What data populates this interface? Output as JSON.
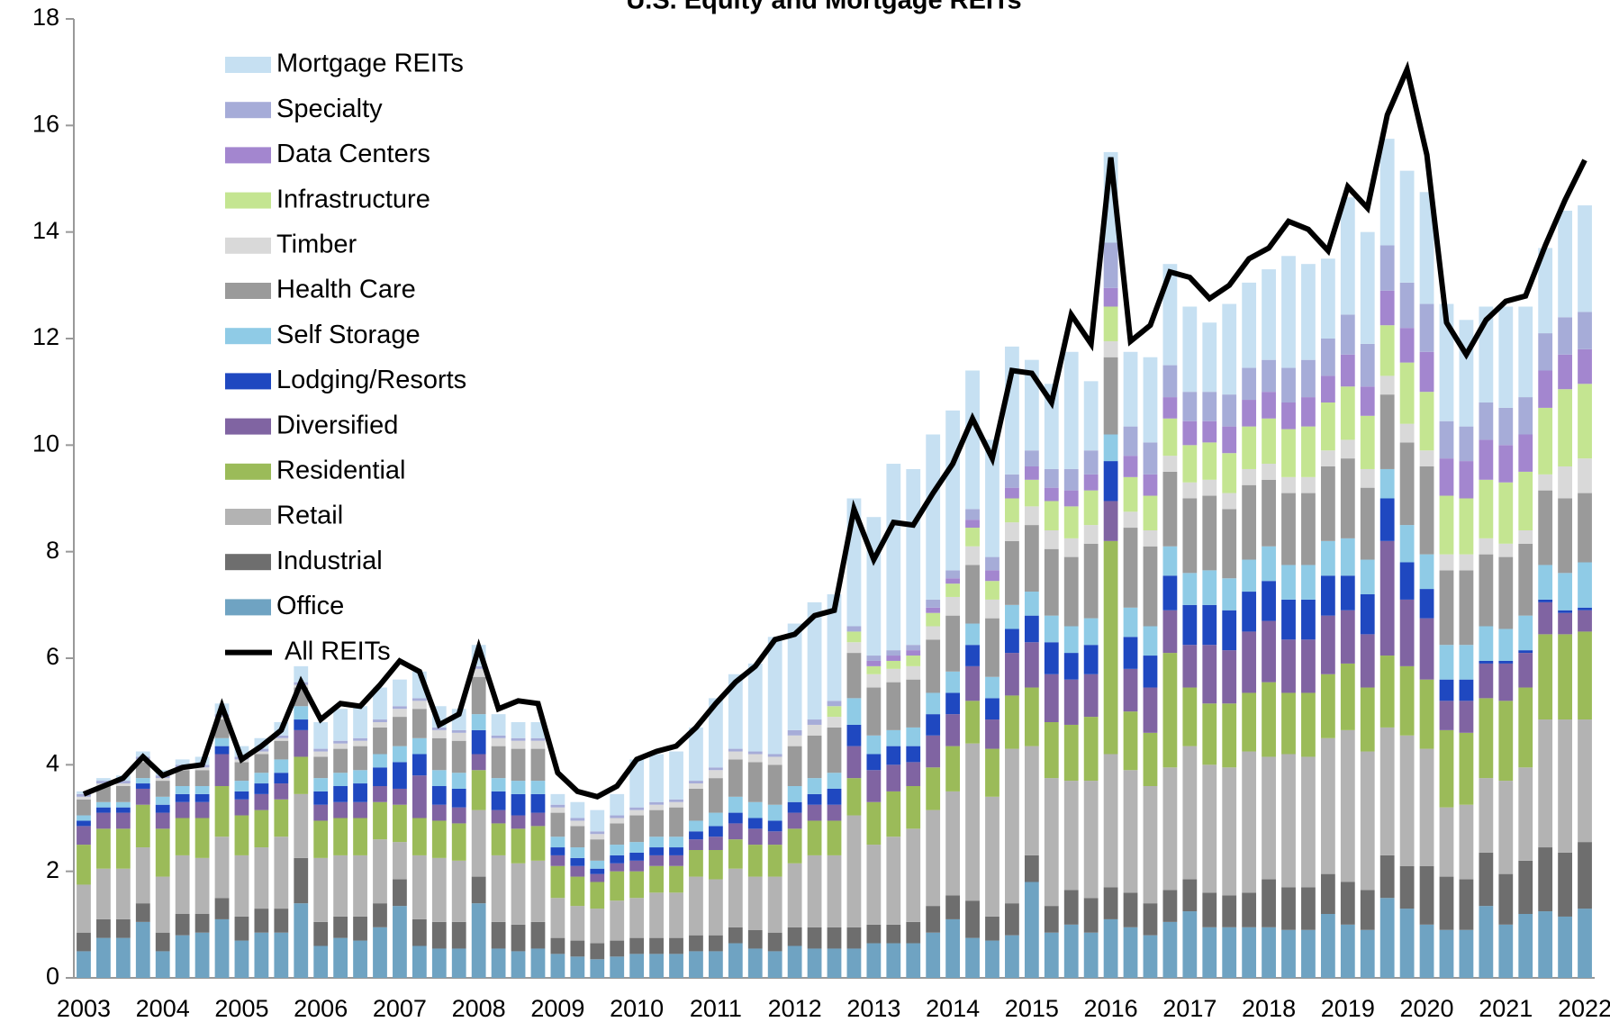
{
  "chart_data": {
    "type": "bar",
    "stacked": true,
    "title": "U.S. Equity and Mortgage REITs",
    "categories": [
      "2003",
      null,
      null,
      null,
      "2004",
      null,
      null,
      null,
      "2005",
      null,
      null,
      null,
      "2006",
      null,
      null,
      null,
      "2007",
      null,
      null,
      null,
      "2008",
      null,
      null,
      null,
      "2009",
      null,
      null,
      null,
      "2010",
      null,
      null,
      null,
      "2011",
      null,
      null,
      null,
      "2012",
      null,
      null,
      null,
      "2013",
      null,
      null,
      null,
      "2014",
      null,
      null,
      null,
      "2015",
      null,
      null,
      null,
      "2016",
      null,
      null,
      null,
      "2017",
      null,
      null,
      null,
      "2018",
      null,
      null,
      null,
      "2019",
      null,
      null,
      null,
      "2020",
      null,
      null,
      null,
      "2021",
      null,
      null,
      null,
      "2022"
    ],
    "ylim": [
      0,
      18
    ],
    "yticks": [
      0,
      2,
      4,
      6,
      8,
      10,
      12,
      14,
      16,
      18
    ],
    "grid": false,
    "legend": "upper left",
    "series": [
      {
        "name": "Office",
        "color": "#6fa3c2",
        "values": [
          0.5,
          0.75,
          0.75,
          1.05,
          0.5,
          0.8,
          0.85,
          1.1,
          0.7,
          0.85,
          0.85,
          1.4,
          0.6,
          0.75,
          0.7,
          0.95,
          1.35,
          0.6,
          0.55,
          0.55,
          1.4,
          0.55,
          0.5,
          0.55,
          0.45,
          0.4,
          0.35,
          0.4,
          0.45,
          0.45,
          0.45,
          0.5,
          0.5,
          0.65,
          0.55,
          0.5,
          0.6,
          0.55,
          0.55,
          0.55,
          0.65,
          0.65,
          0.65,
          0.85,
          1.1,
          0.75,
          0.7,
          0.8,
          1.8,
          0.85,
          1.0,
          0.85,
          1.1,
          0.95,
          0.8,
          1.05,
          1.25,
          0.95,
          0.95,
          0.95,
          0.95,
          0.9,
          0.9,
          1.2,
          1.0,
          0.9,
          1.5,
          1.3,
          1.0,
          0.9,
          0.9,
          1.35,
          1.0,
          1.2,
          1.25,
          1.15,
          1.3
        ]
      },
      {
        "name": "Industrial",
        "color": "#6e6e6e",
        "values": [
          0.35,
          0.35,
          0.35,
          0.35,
          0.35,
          0.4,
          0.35,
          0.4,
          0.45,
          0.45,
          0.45,
          0.85,
          0.45,
          0.4,
          0.45,
          0.45,
          0.5,
          0.5,
          0.5,
          0.5,
          0.5,
          0.5,
          0.5,
          0.5,
          0.3,
          0.3,
          0.3,
          0.3,
          0.3,
          0.3,
          0.3,
          0.3,
          0.3,
          0.3,
          0.35,
          0.35,
          0.35,
          0.4,
          0.4,
          0.4,
          0.35,
          0.35,
          0.4,
          0.5,
          0.45,
          0.7,
          0.45,
          0.6,
          0.5,
          0.5,
          0.65,
          0.65,
          0.6,
          0.65,
          0.6,
          0.6,
          0.6,
          0.65,
          0.6,
          0.65,
          0.9,
          0.8,
          0.8,
          0.75,
          0.8,
          0.75,
          0.8,
          0.8,
          1.1,
          1.0,
          0.95,
          1.0,
          0.95,
          1.0,
          1.2,
          1.2,
          1.25
        ]
      },
      {
        "name": "Retail",
        "color": "#b3b3b3",
        "values": [
          0.9,
          0.95,
          0.95,
          1.05,
          1.05,
          1.1,
          1.05,
          1.15,
          1.15,
          1.15,
          1.35,
          1.2,
          1.2,
          1.15,
          1.15,
          1.2,
          0.7,
          1.2,
          1.2,
          1.15,
          1.25,
          1.25,
          1.15,
          1.15,
          0.75,
          0.65,
          0.65,
          0.75,
          0.75,
          0.85,
          0.85,
          1.1,
          1.05,
          1.1,
          1.0,
          1.05,
          1.2,
          1.35,
          1.35,
          2.1,
          1.5,
          1.65,
          1.75,
          1.8,
          1.95,
          2.95,
          2.25,
          2.9,
          2.05,
          2.4,
          2.05,
          2.2,
          2.5,
          2.3,
          2.2,
          2.3,
          2.5,
          2.4,
          2.4,
          2.65,
          2.3,
          2.5,
          2.45,
          2.55,
          2.85,
          2.6,
          2.4,
          2.45,
          2.2,
          1.3,
          1.4,
          1.4,
          1.75,
          1.75,
          2.4,
          2.5,
          2.3
        ]
      },
      {
        "name": "Residential",
        "color": "#9bbb59",
        "values": [
          0.75,
          0.75,
          0.75,
          0.8,
          0.9,
          0.7,
          0.75,
          0.95,
          0.75,
          0.7,
          0.7,
          0.7,
          0.7,
          0.7,
          0.7,
          0.7,
          0.7,
          0.7,
          0.7,
          0.7,
          0.75,
          0.6,
          0.65,
          0.65,
          0.6,
          0.55,
          0.5,
          0.55,
          0.5,
          0.5,
          0.5,
          0.5,
          0.55,
          0.55,
          0.6,
          0.6,
          0.65,
          0.65,
          0.65,
          0.7,
          0.8,
          0.85,
          0.8,
          0.8,
          0.85,
          0.8,
          0.9,
          1.0,
          1.1,
          1.05,
          1.05,
          1.2,
          4.0,
          1.1,
          1.0,
          2.15,
          1.1,
          1.15,
          1.2,
          1.1,
          1.4,
          1.15,
          1.2,
          1.2,
          1.25,
          1.2,
          1.35,
          1.3,
          1.3,
          1.45,
          1.35,
          1.5,
          1.5,
          1.5,
          1.6,
          1.6,
          1.65
        ]
      },
      {
        "name": "Diversified",
        "color": "#8064a2",
        "values": [
          0.35,
          0.3,
          0.3,
          0.3,
          0.3,
          0.3,
          0.3,
          0.6,
          0.3,
          0.3,
          0.3,
          0.5,
          0.3,
          0.3,
          0.3,
          0.3,
          0.3,
          0.8,
          0.3,
          0.3,
          0.3,
          0.25,
          0.25,
          0.25,
          0.2,
          0.2,
          0.15,
          0.15,
          0.2,
          0.2,
          0.2,
          0.2,
          0.25,
          0.3,
          0.3,
          0.25,
          0.3,
          0.3,
          0.3,
          0.6,
          0.6,
          0.5,
          0.45,
          0.6,
          0.6,
          0.65,
          0.55,
          0.8,
          0.85,
          0.9,
          0.85,
          0.8,
          0.75,
          0.8,
          0.85,
          0.8,
          0.8,
          1.1,
          1.0,
          1.15,
          1.15,
          1.0,
          1.0,
          1.1,
          1.0,
          1.0,
          2.15,
          1.25,
          1.15,
          0.55,
          0.6,
          0.65,
          0.7,
          0.65,
          0.6,
          0.4,
          0.4
        ]
      },
      {
        "name": "Lodging/Resorts",
        "color": "#1f48c0",
        "values": [
          0.1,
          0.1,
          0.1,
          0.1,
          0.15,
          0.15,
          0.15,
          0.15,
          0.15,
          0.2,
          0.2,
          0.2,
          0.25,
          0.3,
          0.35,
          0.35,
          0.5,
          0.4,
          0.35,
          0.35,
          0.45,
          0.35,
          0.4,
          0.35,
          0.15,
          0.15,
          0.1,
          0.15,
          0.15,
          0.15,
          0.15,
          0.15,
          0.2,
          0.2,
          0.2,
          0.2,
          0.2,
          0.2,
          0.3,
          0.4,
          0.3,
          0.35,
          0.3,
          0.4,
          0.4,
          0.4,
          0.4,
          0.45,
          0.5,
          0.6,
          0.5,
          0.55,
          0.75,
          0.6,
          0.6,
          0.65,
          0.75,
          0.75,
          0.75,
          0.75,
          0.75,
          0.75,
          0.75,
          0.75,
          0.65,
          0.75,
          0.8,
          0.7,
          0.55,
          0.4,
          0.4,
          0.05,
          0.05,
          0.05,
          0.05,
          0.05,
          0.05
        ]
      },
      {
        "name": "Self Storage",
        "color": "#8fcbe6",
        "values": [
          0.1,
          0.1,
          0.1,
          0.1,
          0.15,
          0.15,
          0.15,
          0.15,
          0.2,
          0.2,
          0.25,
          0.25,
          0.25,
          0.25,
          0.25,
          0.25,
          0.3,
          0.3,
          0.3,
          0.3,
          0.3,
          0.25,
          0.25,
          0.25,
          0.2,
          0.2,
          0.15,
          0.2,
          0.2,
          0.2,
          0.2,
          0.2,
          0.25,
          0.3,
          0.3,
          0.3,
          0.3,
          0.3,
          0.3,
          0.5,
          0.35,
          0.3,
          0.35,
          0.4,
          0.4,
          0.4,
          0.4,
          0.45,
          0.45,
          0.5,
          0.5,
          0.5,
          0.5,
          0.55,
          0.55,
          0.55,
          0.6,
          0.65,
          0.6,
          0.6,
          0.65,
          0.65,
          0.65,
          0.65,
          0.7,
          0.65,
          0.55,
          0.7,
          0.65,
          0.65,
          0.65,
          0.65,
          0.6,
          0.65,
          0.65,
          0.7,
          0.85
        ]
      },
      {
        "name": "Health Care",
        "color": "#9a9a9a",
        "values": [
          0.3,
          0.3,
          0.3,
          0.3,
          0.3,
          0.3,
          0.3,
          0.35,
          0.35,
          0.35,
          0.35,
          0.35,
          0.4,
          0.45,
          0.45,
          0.5,
          0.55,
          0.55,
          0.6,
          0.6,
          0.7,
          0.6,
          0.6,
          0.6,
          0.45,
          0.4,
          0.4,
          0.4,
          0.5,
          0.5,
          0.55,
          0.6,
          0.65,
          0.7,
          0.75,
          0.75,
          0.75,
          0.8,
          0.85,
          0.85,
          0.9,
          0.9,
          0.9,
          1.0,
          1.05,
          1.1,
          1.1,
          1.2,
          1.25,
          1.25,
          1.3,
          1.4,
          1.45,
          1.5,
          1.5,
          1.4,
          1.4,
          1.4,
          1.3,
          1.4,
          1.25,
          1.35,
          1.35,
          1.4,
          1.5,
          1.35,
          1.4,
          1.55,
          1.65,
          1.4,
          1.4,
          1.35,
          1.35,
          1.35,
          1.4,
          1.4,
          1.3
        ]
      },
      {
        "name": "Timber",
        "color": "#d9d9d9",
        "values": [
          0.05,
          0.05,
          0.05,
          0.05,
          0.05,
          0.05,
          0.05,
          0.05,
          0.05,
          0.05,
          0.05,
          0.05,
          0.1,
          0.1,
          0.1,
          0.1,
          0.15,
          0.15,
          0.15,
          0.15,
          0.15,
          0.15,
          0.15,
          0.15,
          0.1,
          0.1,
          0.1,
          0.1,
          0.1,
          0.1,
          0.1,
          0.1,
          0.15,
          0.15,
          0.15,
          0.15,
          0.2,
          0.2,
          0.2,
          0.2,
          0.25,
          0.25,
          0.25,
          0.25,
          0.35,
          0.35,
          0.35,
          0.35,
          0.35,
          0.35,
          0.35,
          0.35,
          0.3,
          0.3,
          0.3,
          0.3,
          0.3,
          0.3,
          0.3,
          0.3,
          0.3,
          0.3,
          0.3,
          0.3,
          0.35,
          0.35,
          0.35,
          0.35,
          0.3,
          0.3,
          0.3,
          0.3,
          0.25,
          0.25,
          0.3,
          0.6,
          0.65
        ]
      },
      {
        "name": "Infrastructure",
        "color": "#c4e591",
        "values": [
          0,
          0,
          0,
          0,
          0,
          0,
          0,
          0,
          0,
          0,
          0,
          0,
          0,
          0,
          0,
          0,
          0,
          0,
          0,
          0,
          0,
          0,
          0,
          0,
          0,
          0,
          0,
          0,
          0,
          0,
          0,
          0,
          0,
          0,
          0,
          0,
          0,
          0,
          0.2,
          0.2,
          0.15,
          0.15,
          0.2,
          0.25,
          0.25,
          0.35,
          0.35,
          0.45,
          0.5,
          0.55,
          0.6,
          0.65,
          0.65,
          0.65,
          0.65,
          0.7,
          0.7,
          0.7,
          0.75,
          0.8,
          0.85,
          0.9,
          0.95,
          0.9,
          1.0,
          1.0,
          0.95,
          1.15,
          1.1,
          1.1,
          1.05,
          1.1,
          1.15,
          1.1,
          1.25,
          1.45,
          1.4
        ]
      },
      {
        "name": "Data Centers",
        "color": "#a386cf",
        "values": [
          0,
          0,
          0,
          0,
          0,
          0,
          0,
          0,
          0,
          0,
          0,
          0,
          0,
          0,
          0,
          0,
          0,
          0,
          0,
          0,
          0,
          0,
          0,
          0,
          0,
          0,
          0,
          0,
          0,
          0,
          0,
          0,
          0,
          0,
          0,
          0,
          0,
          0,
          0,
          0,
          0.1,
          0.1,
          0.1,
          0.1,
          0.1,
          0.15,
          0.2,
          0.2,
          0.25,
          0.25,
          0.3,
          0.3,
          0.35,
          0.4,
          0.4,
          0.4,
          0.45,
          0.4,
          0.5,
          0.5,
          0.5,
          0.5,
          0.55,
          0.5,
          0.6,
          0.55,
          0.65,
          0.65,
          0.75,
          0.7,
          0.7,
          0.75,
          0.7,
          0.7,
          0.7,
          0.65,
          0.65
        ]
      },
      {
        "name": "Specialty",
        "color": "#a6acd8",
        "values": [
          0.05,
          0.05,
          0.05,
          0.05,
          0.05,
          0.05,
          0.05,
          0.05,
          0.05,
          0.05,
          0.05,
          0.05,
          0.05,
          0.05,
          0.05,
          0.05,
          0.05,
          0.05,
          0.05,
          0.05,
          0.05,
          0.05,
          0.05,
          0.05,
          0.05,
          0.05,
          0.05,
          0.05,
          0.05,
          0.05,
          0.05,
          0.05,
          0.05,
          0.05,
          0.05,
          0.05,
          0.1,
          0.1,
          0.1,
          0.1,
          0.1,
          0.1,
          0.1,
          0.15,
          0.15,
          0.2,
          0.25,
          0.25,
          0.3,
          0.35,
          0.4,
          0.45,
          0.85,
          0.55,
          0.6,
          0.6,
          0.55,
          0.55,
          0.6,
          0.6,
          0.6,
          0.65,
          0.7,
          0.7,
          0.75,
          0.8,
          0.85,
          0.85,
          0.9,
          0.7,
          0.65,
          0.7,
          0.7,
          0.7,
          0.7,
          0.7,
          0.7
        ]
      },
      {
        "name": "Mortgage REITs",
        "color": "#c6e0f2",
        "values": [
          0.05,
          0.05,
          0.1,
          0.1,
          0.1,
          0.1,
          0.15,
          0.2,
          0.2,
          0.2,
          0.25,
          0.3,
          0.5,
          0.6,
          0.6,
          0.6,
          0.5,
          0.5,
          0.4,
          0.4,
          0.4,
          0.4,
          0.3,
          0.3,
          0.2,
          0.3,
          0.4,
          0.4,
          0.9,
          0.9,
          0.9,
          1.0,
          1.3,
          1.4,
          1.65,
          2.2,
          2.0,
          2.2,
          2.0,
          2.4,
          2.6,
          3.5,
          3.3,
          3.1,
          3.0,
          2.6,
          2.2,
          2.4,
          1.7,
          1.6,
          2.2,
          1.3,
          1.7,
          1.4,
          1.6,
          1.9,
          1.6,
          1.3,
          1.7,
          1.6,
          1.7,
          2.1,
          1.8,
          1.5,
          2.2,
          2.1,
          2.0,
          2.1,
          2.1,
          2.2,
          2.0,
          1.8,
          1.9,
          1.7,
          1.6,
          2.0,
          2.0
        ]
      },
      {
        "name": "All REITs",
        "type": "line",
        "color": "#000000",
        "values": [
          3.45,
          3.6,
          3.75,
          4.15,
          3.8,
          3.95,
          4.0,
          5.1,
          4.1,
          4.35,
          4.65,
          5.55,
          4.85,
          5.15,
          5.1,
          5.5,
          5.95,
          5.75,
          4.75,
          4.95,
          6.2,
          5.05,
          5.2,
          5.15,
          3.85,
          3.5,
          3.4,
          3.6,
          4.1,
          4.25,
          4.35,
          4.7,
          5.15,
          5.55,
          5.85,
          6.35,
          6.45,
          6.8,
          6.9,
          8.8,
          7.85,
          8.55,
          8.5,
          9.1,
          9.65,
          10.5,
          9.75,
          11.4,
          11.35,
          10.8,
          12.45,
          11.9,
          15.4,
          11.95,
          12.25,
          13.25,
          13.15,
          12.75,
          13.0,
          13.5,
          13.7,
          14.2,
          14.05,
          13.65,
          14.85,
          14.45,
          16.2,
          17.05,
          15.45,
          12.3,
          11.7,
          12.35,
          12.7,
          12.8,
          13.75,
          14.6,
          15.35
        ]
      }
    ]
  }
}
